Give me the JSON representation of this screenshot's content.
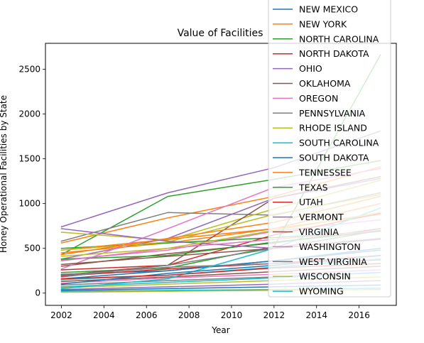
{
  "chart_data": {
    "type": "line",
    "title": "Value of Facilities",
    "xlabel": "Year",
    "ylabel": "Honey Operational Facilities by State",
    "xlim": [
      2001.25,
      2017.75
    ],
    "ylim": [
      -137,
      2790
    ],
    "xticks": [
      2002,
      2004,
      2006,
      2008,
      2010,
      2012,
      2014,
      2016
    ],
    "yticks": [
      0,
      500,
      1000,
      1500,
      2000,
      2500
    ],
    "x": [
      2002,
      2007,
      2012,
      2017
    ],
    "grid": false,
    "legend_position": "top-right",
    "series": [
      {
        "name": "",
        "color": "#2ca02c",
        "values": [
          430,
          1080,
          1270,
          1480
        ]
      },
      {
        "name": "",
        "color": "#ff7f0e",
        "values": [
          560,
          840,
          1080,
          1410
        ]
      },
      {
        "name": "",
        "color": "#7f7f7f",
        "values": [
          580,
          900,
          870,
          1120
        ]
      },
      {
        "name": "",
        "color": "#bcbd22",
        "values": [
          680,
          590,
          940,
          1260
        ]
      },
      {
        "name": "",
        "color": "#9467bd",
        "values": [
          380,
          610,
          1060,
          1280
        ]
      },
      {
        "name": "",
        "color": "#e377c2",
        "values": [
          370,
          480,
          690,
          820
        ]
      },
      {
        "name": "",
        "color": "#ff7f0e",
        "values": [
          450,
          560,
          720,
          880
        ]
      },
      {
        "name": "",
        "color": "#2ca02c",
        "values": [
          500,
          560,
          620,
          690
        ]
      },
      {
        "name": "",
        "color": "#8c564b",
        "values": [
          300,
          440,
          560,
          720
        ]
      },
      {
        "name": "",
        "color": "#1f77b4",
        "values": [
          210,
          250,
          360,
          480
        ]
      },
      {
        "name": "",
        "color": "#d62728",
        "values": [
          190,
          270,
          330,
          420
        ]
      },
      {
        "name": "",
        "color": "#17becf",
        "values": [
          150,
          200,
          290,
          380
        ]
      },
      {
        "name": "",
        "color": "#8c564b",
        "values": [
          130,
          180,
          240,
          300
        ]
      },
      {
        "name": "",
        "color": "#e377c2",
        "values": [
          110,
          170,
          210,
          260
        ]
      },
      {
        "name": "",
        "color": "#7f7f7f",
        "values": [
          90,
          140,
          180,
          230
        ]
      },
      {
        "name": "",
        "color": "#bcbd22",
        "values": [
          60,
          100,
          140,
          180
        ]
      },
      {
        "name": "",
        "color": "#9467bd",
        "values": [
          40,
          70,
          100,
          140
        ]
      },
      {
        "name": "",
        "color": "#1f77b4",
        "values": [
          30,
          50,
          70,
          90
        ]
      },
      {
        "name": "",
        "color": "#17becf",
        "values": [
          20,
          30,
          40,
          55
        ]
      },
      {
        "name": "",
        "color": "#bcbd22",
        "values": [
          10,
          20,
          30,
          40
        ]
      },
      {
        "name": "NEW MEXICO",
        "color": "#1f77b4",
        "values": [
          160,
          250,
          360,
          500
        ]
      },
      {
        "name": "NEW YORK",
        "color": "#ff7f0e",
        "values": [
          480,
          600,
          720,
          1000
        ]
      },
      {
        "name": "NORTH CAROLINA",
        "color": "#2ca02c",
        "values": [
          230,
          280,
          520,
          2660
        ]
      },
      {
        "name": "NORTH DAKOTA",
        "color": "#d62728",
        "values": [
          260,
          310,
          650,
          890
        ]
      },
      {
        "name": "OHIO",
        "color": "#9467bd",
        "values": [
          740,
          1120,
          1400,
          1810
        ]
      },
      {
        "name": "OKLAHOMA",
        "color": "#8c564b",
        "values": [
          200,
          310,
          1060,
          1300
        ]
      },
      {
        "name": "OREGON",
        "color": "#e377c2",
        "values": [
          270,
          720,
          1180,
          1390
        ]
      },
      {
        "name": "PENNSYLVANIA",
        "color": "#7f7f7f",
        "values": [
          200,
          290,
          330,
          370
        ]
      },
      {
        "name": "RHODE ISLAND",
        "color": "#bcbd22",
        "values": [
          480,
          570,
          880,
          1100
        ]
      },
      {
        "name": "SOUTH CAROLINA",
        "color": "#17becf",
        "values": [
          50,
          160,
          500,
          950
        ]
      },
      {
        "name": "SOUTH DAKOTA",
        "color": "#1f77b4",
        "values": [
          100,
          220,
          310,
          420
        ]
      },
      {
        "name": "TENNESSEE",
        "color": "#ff7f0e",
        "values": [
          430,
          610,
          790,
          1080
        ]
      },
      {
        "name": "TEXAS",
        "color": "#2ca02c",
        "values": [
          380,
          420,
          570,
          690
        ]
      },
      {
        "name": "UTAH",
        "color": "#d62728",
        "values": [
          160,
          200,
          280,
          330
        ]
      },
      {
        "name": "VERMONT",
        "color": "#9467bd",
        "values": [
          720,
          580,
          500,
          600
        ]
      },
      {
        "name": "VIRGINIA",
        "color": "#8c564b",
        "values": [
          320,
          410,
          500,
          610
        ]
      },
      {
        "name": "WASHINGTON",
        "color": "#e377c2",
        "values": [
          360,
          500,
          600,
          700
        ]
      },
      {
        "name": "WEST VIRGINIA",
        "color": "#7f7f7f",
        "values": [
          180,
          310,
          500,
          700
        ]
      },
      {
        "name": "WISCONSIN",
        "color": "#bcbd22",
        "values": [
          410,
          500,
          700,
          900
        ]
      },
      {
        "name": "WYOMING",
        "color": "#17becf",
        "values": [
          70,
          120,
          170,
          230
        ]
      }
    ]
  }
}
